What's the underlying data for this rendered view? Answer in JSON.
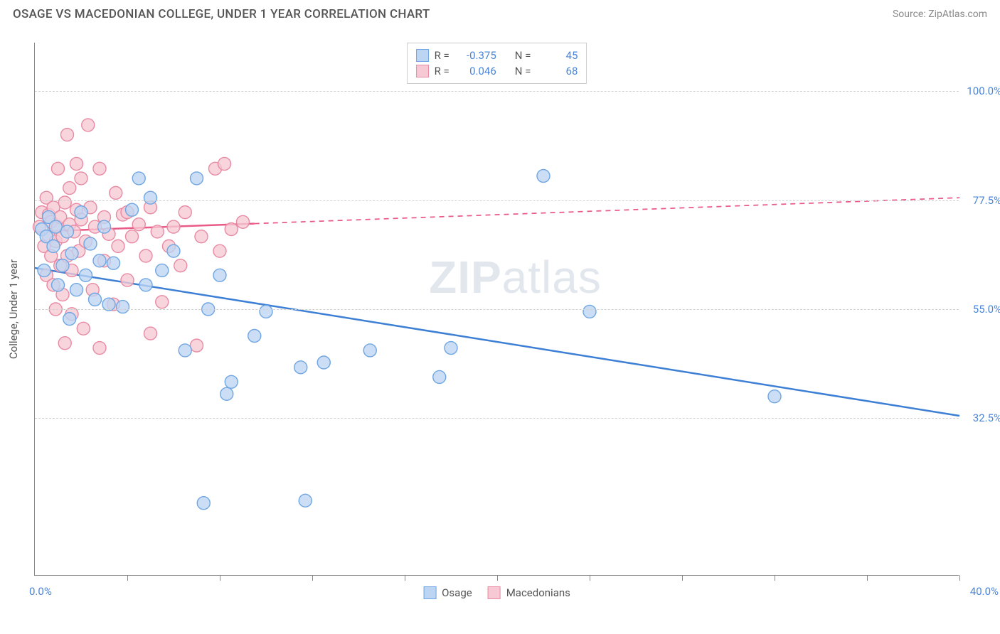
{
  "header": {
    "title": "OSAGE VS MACEDONIAN COLLEGE, UNDER 1 YEAR CORRELATION CHART",
    "source": "Source: ZipAtlas.com"
  },
  "watermark": {
    "zip": "ZIP",
    "atlas": "atlas"
  },
  "axes": {
    "y_title": "College, Under 1 year",
    "x_min_label": "0.0%",
    "x_max_label": "40.0%",
    "x_min": 0.0,
    "x_max": 40.0,
    "y_min": 0.0,
    "y_max": 110.0,
    "y_ticks": [
      {
        "v": 32.5,
        "label": "32.5%"
      },
      {
        "v": 55.0,
        "label": "55.0%"
      },
      {
        "v": 77.5,
        "label": "77.5%"
      },
      {
        "v": 100.0,
        "label": "100.0%"
      }
    ],
    "x_tick_positions": [
      4,
      8,
      12,
      16,
      20,
      24,
      28,
      32,
      36,
      40
    ]
  },
  "legend_top": {
    "rows": [
      {
        "swatch_fill": "#bcd5f2",
        "swatch_border": "#6fa6e3",
        "r_label": "R =",
        "r": "-0.375",
        "n_label": "N =",
        "n": "45"
      },
      {
        "swatch_fill": "#f6c9d4",
        "swatch_border": "#e88aa3",
        "r_label": "R =",
        "r": "0.046",
        "n_label": "N =",
        "n": "68"
      }
    ]
  },
  "legend_bottom": {
    "items": [
      {
        "swatch_fill": "#bcd5f2",
        "swatch_border": "#6fa6e3",
        "label": "Osage"
      },
      {
        "swatch_fill": "#f6c9d4",
        "swatch_border": "#e88aa3",
        "label": "Macedonians"
      }
    ]
  },
  "series": {
    "osage": {
      "color_fill": "#bcd5f2",
      "color_stroke": "#6fa6e3",
      "marker_radius": 9,
      "marker_opacity": 0.78,
      "line_color": "#3c7fd4",
      "line_width": 2.5,
      "trend": {
        "x1": 0.0,
        "y1": 63.5,
        "x2": 40.0,
        "y2": 33.0,
        "solid_until_x": 40.0
      },
      "points": [
        [
          0.3,
          71.5
        ],
        [
          0.4,
          63.0
        ],
        [
          0.5,
          70.0
        ],
        [
          0.6,
          74.0
        ],
        [
          0.8,
          68.0
        ],
        [
          0.9,
          72.0
        ],
        [
          1.0,
          60.0
        ],
        [
          1.2,
          64.0
        ],
        [
          1.4,
          71.0
        ],
        [
          1.5,
          53.0
        ],
        [
          1.6,
          66.5
        ],
        [
          1.8,
          59.0
        ],
        [
          2.0,
          75.0
        ],
        [
          2.2,
          62.0
        ],
        [
          2.4,
          68.5
        ],
        [
          2.6,
          57.0
        ],
        [
          2.8,
          65.0
        ],
        [
          3.0,
          72.0
        ],
        [
          3.2,
          56.0
        ],
        [
          3.4,
          64.5
        ],
        [
          3.8,
          55.5
        ],
        [
          4.2,
          75.5
        ],
        [
          4.5,
          82.0
        ],
        [
          4.8,
          60.0
        ],
        [
          5.0,
          78.0
        ],
        [
          5.5,
          63.0
        ],
        [
          6.0,
          67.0
        ],
        [
          6.5,
          46.5
        ],
        [
          7.0,
          82.0
        ],
        [
          7.3,
          15.0
        ],
        [
          7.5,
          55.0
        ],
        [
          8.0,
          62.0
        ],
        [
          8.3,
          37.5
        ],
        [
          8.5,
          40.0
        ],
        [
          9.5,
          49.5
        ],
        [
          10.0,
          54.5
        ],
        [
          11.5,
          43.0
        ],
        [
          11.7,
          15.5
        ],
        [
          12.5,
          44.0
        ],
        [
          14.5,
          46.5
        ],
        [
          17.5,
          41.0
        ],
        [
          18.0,
          47.0
        ],
        [
          22.0,
          82.5
        ],
        [
          24.0,
          54.5
        ],
        [
          32.0,
          37.0
        ]
      ]
    },
    "macedonians": {
      "color_fill": "#f6c9d4",
      "color_stroke": "#e88aa3",
      "marker_radius": 9,
      "marker_opacity": 0.78,
      "line_color": "#ea5a87",
      "line_width": 2.5,
      "trend": {
        "x1": 0.0,
        "y1": 71.0,
        "x2": 40.0,
        "y2": 78.0,
        "solid_until_x": 9.5
      },
      "points": [
        [
          0.2,
          72.0
        ],
        [
          0.3,
          75.0
        ],
        [
          0.4,
          68.0
        ],
        [
          0.5,
          78.0
        ],
        [
          0.5,
          62.0
        ],
        [
          0.6,
          70.0
        ],
        [
          0.6,
          74.5
        ],
        [
          0.7,
          66.0
        ],
        [
          0.7,
          73.0
        ],
        [
          0.8,
          60.0
        ],
        [
          0.8,
          76.0
        ],
        [
          0.9,
          69.0
        ],
        [
          0.9,
          55.0
        ],
        [
          1.0,
          72.0
        ],
        [
          1.0,
          84.0
        ],
        [
          1.1,
          64.0
        ],
        [
          1.1,
          74.0
        ],
        [
          1.2,
          58.0
        ],
        [
          1.2,
          70.0
        ],
        [
          1.3,
          48.0
        ],
        [
          1.3,
          77.0
        ],
        [
          1.4,
          66.0
        ],
        [
          1.4,
          91.0
        ],
        [
          1.5,
          72.5
        ],
        [
          1.5,
          80.0
        ],
        [
          1.6,
          63.0
        ],
        [
          1.6,
          54.0
        ],
        [
          1.7,
          71.0
        ],
        [
          1.8,
          75.5
        ],
        [
          1.8,
          85.0
        ],
        [
          1.9,
          67.0
        ],
        [
          2.0,
          73.5
        ],
        [
          2.0,
          82.0
        ],
        [
          2.1,
          51.0
        ],
        [
          2.2,
          69.0
        ],
        [
          2.3,
          93.0
        ],
        [
          2.4,
          76.0
        ],
        [
          2.5,
          59.0
        ],
        [
          2.6,
          72.0
        ],
        [
          2.8,
          47.0
        ],
        [
          2.8,
          84.0
        ],
        [
          3.0,
          65.0
        ],
        [
          3.0,
          74.0
        ],
        [
          3.2,
          70.5
        ],
        [
          3.4,
          56.0
        ],
        [
          3.5,
          79.0
        ],
        [
          3.6,
          68.0
        ],
        [
          3.8,
          74.5
        ],
        [
          4.0,
          61.0
        ],
        [
          4.0,
          75.0
        ],
        [
          4.2,
          70.0
        ],
        [
          4.5,
          72.5
        ],
        [
          4.8,
          66.0
        ],
        [
          5.0,
          50.0
        ],
        [
          5.0,
          76.0
        ],
        [
          5.3,
          71.0
        ],
        [
          5.5,
          56.5
        ],
        [
          5.8,
          68.0
        ],
        [
          6.0,
          72.0
        ],
        [
          6.3,
          64.0
        ],
        [
          6.5,
          75.0
        ],
        [
          7.0,
          47.5
        ],
        [
          7.2,
          70.0
        ],
        [
          7.8,
          84.0
        ],
        [
          8.0,
          67.0
        ],
        [
          8.2,
          85.0
        ],
        [
          8.5,
          71.5
        ],
        [
          9.0,
          73.0
        ]
      ]
    }
  },
  "colors": {
    "grid": "#d0d0d0",
    "axis": "#888888",
    "text": "#555555",
    "blue_text": "#4a85d8"
  }
}
